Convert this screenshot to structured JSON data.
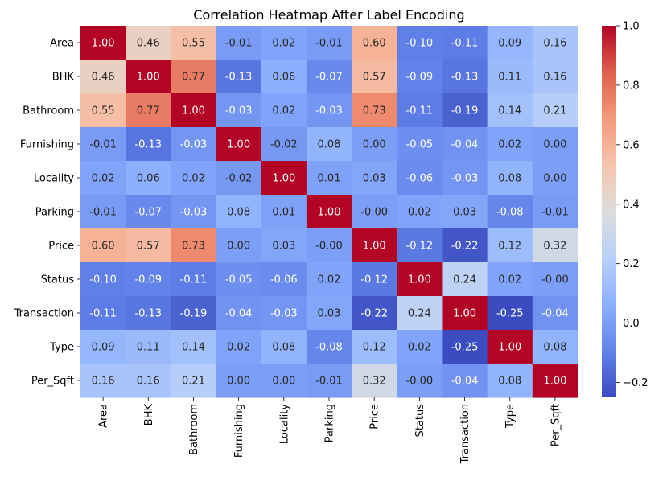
{
  "chart_data": {
    "type": "heatmap",
    "title": "Correlation Heatmap After Label Encoding",
    "rows": [
      "Area",
      "BHK",
      "Bathroom",
      "Furnishing",
      "Locality",
      "Parking",
      "Price",
      "Status",
      "Transaction",
      "Type",
      "Per_Sqft"
    ],
    "columns": [
      "Area",
      "BHK",
      "Bathroom",
      "Furnishing",
      "Locality",
      "Parking",
      "Price",
      "Status",
      "Transaction",
      "Type",
      "Per_Sqft"
    ],
    "values": [
      [
        1.0,
        0.46,
        0.55,
        -0.01,
        0.02,
        -0.01,
        0.6,
        -0.1,
        -0.11,
        0.09,
        0.16
      ],
      [
        0.46,
        1.0,
        0.77,
        -0.13,
        0.06,
        -0.07,
        0.57,
        -0.09,
        -0.13,
        0.11,
        0.16
      ],
      [
        0.55,
        0.77,
        1.0,
        -0.03,
        0.02,
        -0.03,
        0.73,
        -0.11,
        -0.19,
        0.14,
        0.21
      ],
      [
        -0.01,
        -0.13,
        -0.03,
        1.0,
        -0.02,
        0.08,
        0.0,
        -0.05,
        -0.04,
        0.02,
        0.0
      ],
      [
        0.02,
        0.06,
        0.02,
        -0.02,
        1.0,
        0.01,
        0.03,
        -0.06,
        -0.03,
        0.08,
        0.0
      ],
      [
        -0.01,
        -0.07,
        -0.03,
        0.08,
        0.01,
        1.0,
        -0.0,
        0.02,
        0.03,
        -0.08,
        -0.01
      ],
      [
        0.6,
        0.57,
        0.73,
        0.0,
        0.03,
        -0.0,
        1.0,
        -0.12,
        -0.22,
        0.12,
        0.32
      ],
      [
        -0.1,
        -0.09,
        -0.11,
        -0.05,
        -0.06,
        0.02,
        -0.12,
        1.0,
        0.24,
        0.02,
        -0.0
      ],
      [
        -0.11,
        -0.13,
        -0.19,
        -0.04,
        -0.03,
        0.03,
        -0.22,
        0.24,
        1.0,
        -0.25,
        -0.04
      ],
      [
        0.09,
        0.11,
        0.14,
        0.02,
        0.08,
        -0.08,
        0.12,
        0.02,
        -0.25,
        1.0,
        0.08
      ],
      [
        0.16,
        0.16,
        0.21,
        0.0,
        0.0,
        -0.01,
        0.32,
        -0.0,
        -0.04,
        0.08,
        1.0
      ]
    ],
    "value_format": "2 decimals",
    "colormap": "coolwarm",
    "colorbar": {
      "range": [
        -0.25,
        1.0
      ],
      "ticks": [
        "−0.2",
        "0.0",
        "0.2",
        "0.4",
        "0.6",
        "0.8",
        "1.0"
      ],
      "tick_values": [
        -0.2,
        0.0,
        0.2,
        0.4,
        0.6,
        0.8,
        1.0
      ]
    },
    "grid": false
  }
}
